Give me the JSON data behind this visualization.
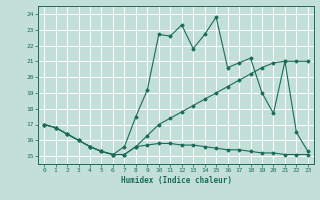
{
  "xlabel": "Humidex (Indice chaleur)",
  "bg_color": "#c2e0d8",
  "line_color": "#1a6b5a",
  "grid_color": "#ffffff",
  "xlim": [
    -0.5,
    23.5
  ],
  "ylim": [
    14.5,
    24.5
  ],
  "xticks": [
    0,
    1,
    2,
    3,
    4,
    5,
    6,
    7,
    8,
    9,
    10,
    11,
    12,
    13,
    14,
    15,
    16,
    17,
    18,
    19,
    20,
    21,
    22,
    23
  ],
  "yticks": [
    15,
    16,
    17,
    18,
    19,
    20,
    21,
    22,
    23,
    24
  ],
  "line1_x": [
    0,
    1,
    2,
    3,
    4,
    5,
    6,
    7,
    8,
    9,
    10,
    11,
    12,
    13,
    14,
    15,
    16,
    17,
    18,
    19,
    20,
    21,
    22,
    23
  ],
  "line1_y": [
    17.0,
    16.8,
    16.4,
    16.0,
    15.6,
    15.3,
    15.1,
    15.1,
    15.6,
    16.3,
    17.0,
    17.4,
    17.8,
    18.2,
    18.6,
    19.0,
    19.4,
    19.8,
    20.2,
    20.6,
    20.9,
    21.0,
    21.0,
    21.0
  ],
  "line2_x": [
    0,
    1,
    2,
    3,
    4,
    5,
    6,
    7,
    8,
    9,
    10,
    11,
    12,
    13,
    14,
    15,
    16,
    17,
    18,
    19,
    20,
    21,
    22,
    23
  ],
  "line2_y": [
    17.0,
    16.8,
    16.4,
    16.0,
    15.6,
    15.3,
    15.1,
    15.6,
    17.5,
    19.2,
    22.7,
    22.6,
    23.3,
    21.8,
    22.7,
    23.8,
    20.6,
    20.9,
    21.2,
    19.0,
    17.7,
    21.0,
    16.5,
    15.3
  ],
  "line3_x": [
    0,
    1,
    2,
    3,
    4,
    5,
    6,
    7,
    8,
    9,
    10,
    11,
    12,
    13,
    14,
    15,
    16,
    17,
    18,
    19,
    20,
    21,
    22,
    23
  ],
  "line3_y": [
    17.0,
    16.8,
    16.4,
    16.0,
    15.6,
    15.3,
    15.1,
    15.1,
    15.6,
    15.7,
    15.8,
    15.8,
    15.7,
    15.7,
    15.6,
    15.5,
    15.4,
    15.4,
    15.3,
    15.2,
    15.2,
    15.1,
    15.1,
    15.1
  ]
}
